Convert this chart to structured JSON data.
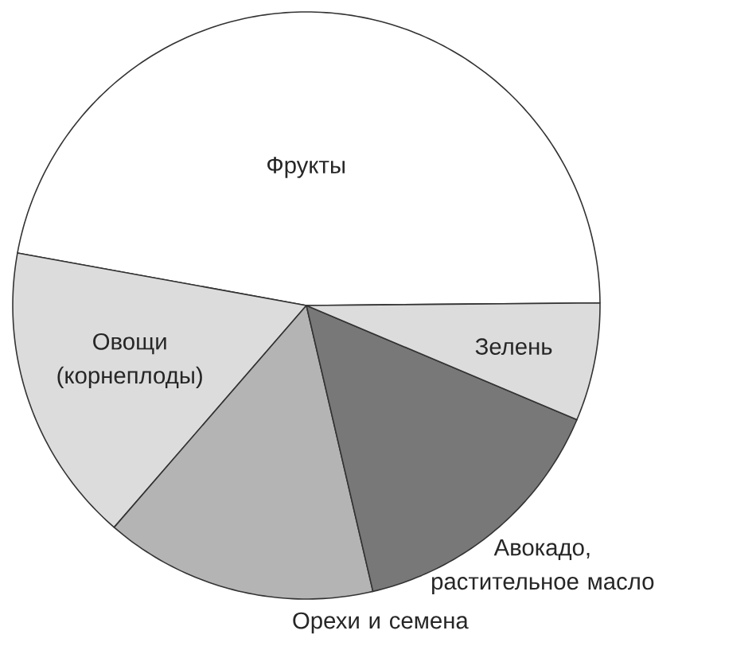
{
  "chart_data": {
    "type": "pie",
    "categories": [
      "Фрукты",
      "Овощи (корнеплоды)",
      "Орехи и семена",
      "Авокадо, растительное масло",
      "Зелень"
    ],
    "values": [
      47,
      16.5,
      15,
      15,
      6.5
    ],
    "colors": [
      "#ffffff",
      "#dcdcdc",
      "#b4b4b4",
      "#787878",
      "#dcdcdc"
    ]
  }
}
